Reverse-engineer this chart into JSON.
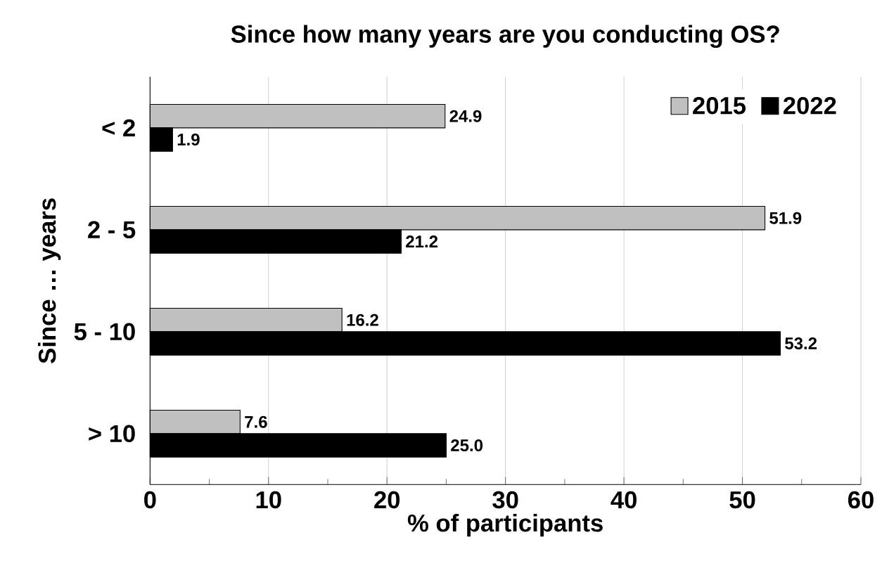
{
  "chart_data": {
    "type": "bar",
    "orientation": "horizontal",
    "title": "Since how many years are you conducting OS?",
    "xlabel": "% of participants",
    "ylabel": "Since … years",
    "categories": [
      "< 2",
      "2 - 5",
      "5 - 10",
      "> 10"
    ],
    "series": [
      {
        "name": "2015",
        "color": "#c0c0c0",
        "values": [
          24.9,
          51.9,
          16.2,
          7.6
        ],
        "value_labels": [
          "24.9",
          "51.9",
          "16.2",
          "7.6"
        ]
      },
      {
        "name": "2022",
        "color": "#000000",
        "values": [
          1.9,
          21.2,
          53.2,
          25.0
        ],
        "value_labels": [
          "1.9",
          "21.2",
          "53.2",
          "25.0"
        ]
      }
    ],
    "xlim": [
      0,
      60
    ],
    "xticks": [
      0,
      10,
      20,
      30,
      40,
      50,
      60
    ],
    "grid": "x",
    "legend": "top right"
  }
}
